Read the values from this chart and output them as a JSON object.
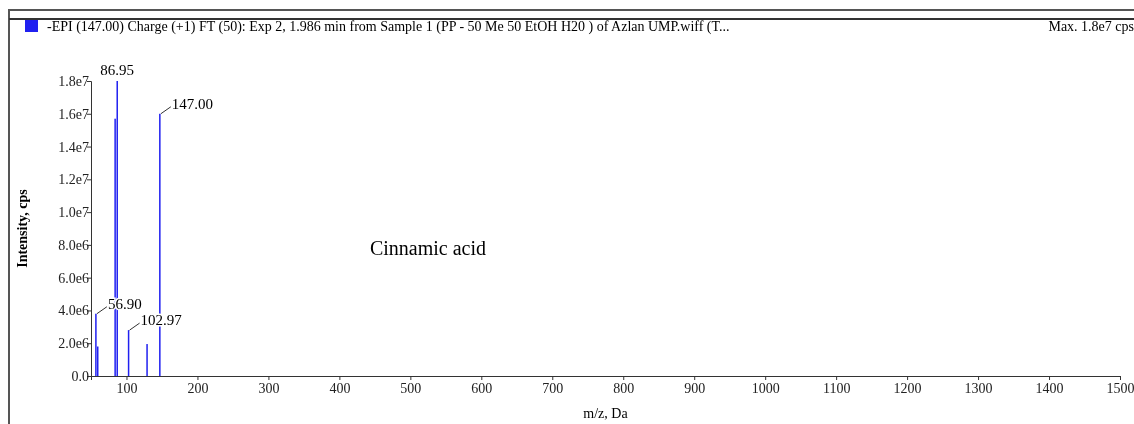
{
  "chart_data": {
    "type": "bar",
    "title": "-EPI (147.00) Charge (+1) FT (50): Exp 2, 1.986 min from Sample 1 (PP - 50 Me 50 EtOH H20 ) of Azlan UMP.wiff (T...",
    "xlabel": "m/z, Da",
    "ylabel": "Intensity, cps",
    "x": [
      56.9,
      59.5,
      84,
      86.95,
      102.97,
      129,
      147
    ],
    "values": [
      3800000,
      1800000,
      15700000,
      18000000,
      2800000,
      1950000,
      16000000
    ],
    "color": "#2020f0",
    "xlim": [
      50,
      1500
    ],
    "xticks": [
      100,
      200,
      300,
      400,
      500,
      600,
      700,
      800,
      900,
      1000,
      1100,
      1200,
      1300,
      1400,
      1500
    ],
    "ylim": [
      0,
      18000000
    ],
    "yticks": [
      {
        "value": 0,
        "label": "0.0"
      },
      {
        "value": 2000000,
        "label": "2.0e6"
      },
      {
        "value": 4000000,
        "label": "4.0e6"
      },
      {
        "value": 6000000,
        "label": "6.0e6"
      },
      {
        "value": 8000000,
        "label": "8.0e6"
      },
      {
        "value": 10000000,
        "label": "1.0e7"
      },
      {
        "value": 12000000,
        "label": "1.2e7"
      },
      {
        "value": 14000000,
        "label": "1.4e7"
      },
      {
        "value": 16000000,
        "label": "1.6e7"
      },
      {
        "value": 18000000,
        "label": "1.8e7"
      }
    ],
    "annotations": [
      {
        "text": "86.95",
        "x": 86.95,
        "y": 18000000
      },
      {
        "text": "147.00",
        "x": 147,
        "y": 16000000
      },
      {
        "text": "56.90",
        "x": 56.9,
        "y": 3800000
      },
      {
        "text": "102.97",
        "x": 102.97,
        "y": 2800000
      },
      "Cinnamic acid",
      "Max. 1.8e7 cps"
    ]
  }
}
